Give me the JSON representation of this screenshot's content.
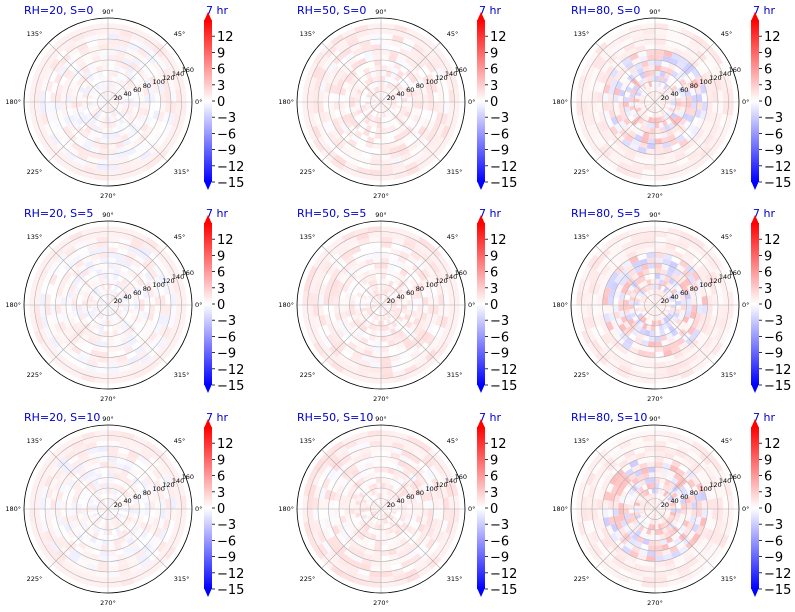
{
  "figure": {
    "time_label": "7 hr",
    "colors": {
      "title": "#0000cc",
      "positive": "#ff0000",
      "negative": "#0000ff",
      "neutral": "#ffffff",
      "grid": "#b0b0b0"
    }
  },
  "chart_data": [
    {
      "type": "heatmap",
      "projection": "polar",
      "title": "RH=20, S=0",
      "annotation": "7 hr",
      "r_ticks": [
        20,
        40,
        60,
        80,
        100,
        120,
        140,
        160
      ],
      "theta_ticks": [
        "0°",
        "45°",
        "90°",
        "135°",
        "180°",
        "225°",
        "270°",
        "315°"
      ],
      "colorbar": {
        "range": [
          -15,
          15
        ],
        "ticks": [
          12,
          9,
          6,
          3,
          0,
          -3,
          -6,
          -9,
          -12,
          -15
        ],
        "colormap": "bwr",
        "extend": "both"
      },
      "approx_value_range": [
        -1,
        1.5
      ]
    },
    {
      "type": "heatmap",
      "projection": "polar",
      "title": "RH=50, S=0",
      "annotation": "7 hr",
      "r_ticks": [
        20,
        40,
        60,
        80,
        100,
        120,
        140,
        160
      ],
      "theta_ticks": [
        "0°",
        "45°",
        "90°",
        "135°",
        "180°",
        "225°",
        "270°",
        "315°"
      ],
      "colorbar": {
        "range": [
          -15,
          15
        ],
        "ticks": [
          12,
          9,
          6,
          3,
          0,
          -3,
          -6,
          -9,
          -12,
          -15
        ],
        "colormap": "bwr",
        "extend": "both"
      },
      "approx_value_range": [
        -0.5,
        2
      ]
    },
    {
      "type": "heatmap",
      "projection": "polar",
      "title": "RH=80, S=0",
      "annotation": "7 hr",
      "r_ticks": [
        20,
        40,
        60,
        80,
        100,
        120,
        140,
        160
      ],
      "theta_ticks": [
        "0°",
        "45°",
        "90°",
        "135°",
        "180°",
        "225°",
        "270°",
        "315°"
      ],
      "colorbar": {
        "range": [
          -15,
          15
        ],
        "ticks": [
          12,
          9,
          6,
          3,
          0,
          -3,
          -6,
          -9,
          -12,
          -15
        ],
        "colormap": "bwr",
        "extend": "both"
      },
      "approx_value_range": [
        -3,
        4
      ]
    },
    {
      "type": "heatmap",
      "projection": "polar",
      "title": "RH=20, S=5",
      "annotation": "7 hr",
      "r_ticks": [
        20,
        40,
        60,
        80,
        100,
        120,
        140,
        160
      ],
      "theta_ticks": [
        "0°",
        "45°",
        "90°",
        "135°",
        "180°",
        "225°",
        "270°",
        "315°"
      ],
      "colorbar": {
        "range": [
          -15,
          15
        ],
        "ticks": [
          12,
          9,
          6,
          3,
          0,
          -3,
          -6,
          -9,
          -12,
          -15
        ],
        "colormap": "bwr",
        "extend": "both"
      },
      "approx_value_range": [
        -1,
        1.5
      ]
    },
    {
      "type": "heatmap",
      "projection": "polar",
      "title": "RH=50, S=5",
      "annotation": "7 hr",
      "r_ticks": [
        20,
        40,
        60,
        80,
        100,
        120,
        140,
        160
      ],
      "theta_ticks": [
        "0°",
        "45°",
        "90°",
        "135°",
        "180°",
        "225°",
        "270°",
        "315°"
      ],
      "colorbar": {
        "range": [
          -15,
          15
        ],
        "ticks": [
          12,
          9,
          6,
          3,
          0,
          -3,
          -6,
          -9,
          -12,
          -15
        ],
        "colormap": "bwr",
        "extend": "both"
      },
      "approx_value_range": [
        -0.5,
        2
      ]
    },
    {
      "type": "heatmap",
      "projection": "polar",
      "title": "RH=80, S=5",
      "annotation": "7 hr",
      "r_ticks": [
        20,
        40,
        60,
        80,
        100,
        120,
        140,
        160
      ],
      "theta_ticks": [
        "0°",
        "45°",
        "90°",
        "135°",
        "180°",
        "225°",
        "270°",
        "315°"
      ],
      "colorbar": {
        "range": [
          -15,
          15
        ],
        "ticks": [
          12,
          9,
          6,
          3,
          0,
          -3,
          -6,
          -9,
          -12,
          -15
        ],
        "colormap": "bwr",
        "extend": "both"
      },
      "approx_value_range": [
        -3,
        4
      ]
    },
    {
      "type": "heatmap",
      "projection": "polar",
      "title": "RH=20, S=10",
      "annotation": "7 hr",
      "r_ticks": [
        20,
        40,
        60,
        80,
        100,
        120,
        140,
        160
      ],
      "theta_ticks": [
        "0°",
        "45°",
        "90°",
        "135°",
        "180°",
        "225°",
        "270°",
        "315°"
      ],
      "colorbar": {
        "range": [
          -15,
          15
        ],
        "ticks": [
          12,
          9,
          6,
          3,
          0,
          -3,
          -6,
          -9,
          -12,
          -15
        ],
        "colormap": "bwr",
        "extend": "both"
      },
      "approx_value_range": [
        -1,
        1.5
      ]
    },
    {
      "type": "heatmap",
      "projection": "polar",
      "title": "RH=50, S=10",
      "annotation": "7 hr",
      "r_ticks": [
        20,
        40,
        60,
        80,
        100,
        120,
        140,
        160
      ],
      "theta_ticks": [
        "0°",
        "45°",
        "90°",
        "135°",
        "180°",
        "225°",
        "270°",
        "315°"
      ],
      "colorbar": {
        "range": [
          -15,
          15
        ],
        "ticks": [
          12,
          9,
          6,
          3,
          0,
          -3,
          -6,
          -9,
          -12,
          -15
        ],
        "colormap": "bwr",
        "extend": "both"
      },
      "approx_value_range": [
        -0.5,
        2
      ]
    },
    {
      "type": "heatmap",
      "projection": "polar",
      "title": "RH=80, S=10",
      "annotation": "7 hr",
      "r_ticks": [
        20,
        40,
        60,
        80,
        100,
        120,
        140,
        160
      ],
      "theta_ticks": [
        "0°",
        "45°",
        "90°",
        "135°",
        "180°",
        "225°",
        "270°",
        "315°"
      ],
      "colorbar": {
        "range": [
          -15,
          15
        ],
        "ticks": [
          12,
          9,
          6,
          3,
          0,
          -3,
          -6,
          -9,
          -12,
          -15
        ],
        "colormap": "bwr",
        "extend": "both"
      },
      "approx_value_range": [
        -3,
        4
      ]
    }
  ]
}
